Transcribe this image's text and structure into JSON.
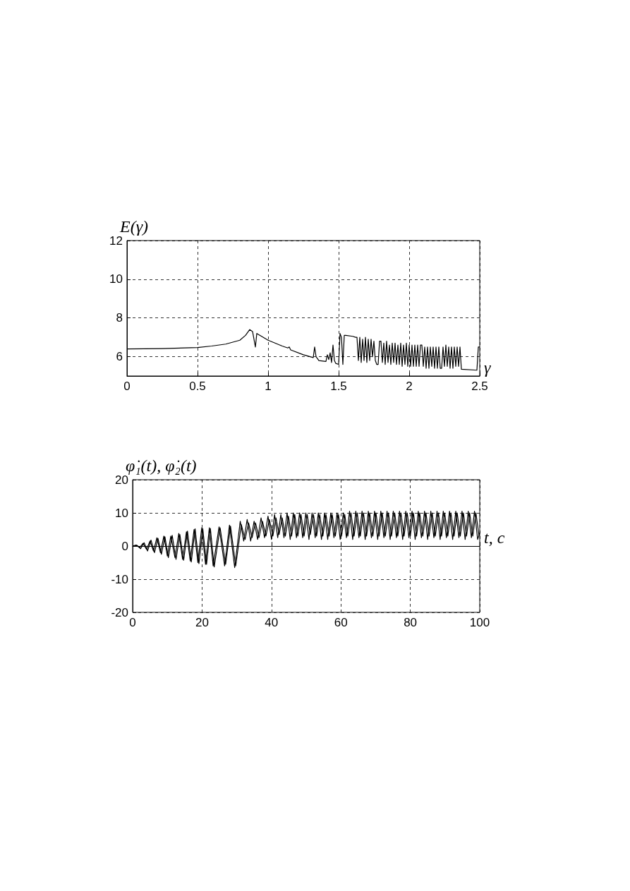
{
  "chart_data": [
    {
      "type": "line",
      "xlabel": "γ",
      "ylabel": "E(γ)",
      "xlim": [
        0,
        2.5
      ],
      "xticks": [
        0,
        0.5,
        1,
        1.5,
        2,
        2.5
      ],
      "ylim": [
        5,
        12
      ],
      "yticks": [
        6,
        8,
        10,
        12
      ],
      "grid": true,
      "marker": "none",
      "series": [
        {
          "color": "#000000",
          "x": [
            0,
            0.25,
            0.5,
            0.6,
            0.7,
            0.8,
            0.84,
            0.86,
            0.87,
            0.89,
            0.9,
            0.91,
            0.92,
            1.0,
            1.1,
            1.14,
            1.15,
            1.16,
            1.25,
            1.32,
            1.33,
            1.34,
            1.36,
            1.41,
            1.42,
            1.43,
            1.44,
            1.45,
            1.46,
            1.47,
            1.48,
            1.5,
            1.51,
            1.52,
            1.53,
            1.54,
            1.55,
            1.6,
            1.62,
            1.63,
            1.64,
            1.65,
            1.66,
            1.67,
            1.68,
            1.69,
            1.7,
            1.71,
            1.72,
            1.73,
            1.74,
            1.75,
            1.76,
            1.77,
            1.78,
            1.79,
            1.8,
            1.81,
            1.82,
            1.83,
            1.84,
            1.85,
            1.86,
            1.87,
            1.88,
            1.89,
            1.9,
            1.91,
            1.92,
            1.93,
            1.94,
            1.95,
            1.96,
            1.97,
            1.98,
            1.99,
            2.0,
            2.01,
            2.02,
            2.03,
            2.04,
            2.05,
            2.06,
            2.07,
            2.08,
            2.09,
            2.1,
            2.11,
            2.12,
            2.13,
            2.14,
            2.15,
            2.16,
            2.17,
            2.18,
            2.19,
            2.2,
            2.21,
            2.22,
            2.23,
            2.24,
            2.25,
            2.26,
            2.27,
            2.28,
            2.29,
            2.3,
            2.31,
            2.32,
            2.33,
            2.34,
            2.35,
            2.36,
            2.37,
            2.48,
            2.49,
            2.5
          ],
          "values": [
            6.4,
            6.42,
            6.47,
            6.55,
            6.65,
            6.85,
            7.1,
            7.3,
            7.4,
            7.3,
            6.9,
            6.5,
            7.2,
            6.85,
            6.55,
            6.45,
            6.5,
            6.35,
            6.1,
            5.95,
            6.5,
            6.0,
            5.8,
            5.75,
            6.1,
            5.85,
            6.2,
            5.7,
            6.6,
            5.8,
            5.65,
            5.6,
            7.2,
            7.0,
            5.6,
            7.1,
            7.1,
            7.05,
            7.0,
            7.0,
            5.8,
            7.0,
            5.7,
            6.9,
            5.8,
            7.0,
            5.7,
            6.9,
            5.8,
            6.9,
            6.0,
            6.8,
            5.8,
            5.6,
            5.6,
            6.8,
            6.8,
            5.7,
            6.7,
            5.6,
            6.8,
            5.7,
            6.6,
            5.6,
            6.7,
            5.7,
            6.7,
            5.6,
            6.6,
            5.6,
            6.7,
            5.5,
            6.6,
            5.6,
            6.7,
            5.5,
            6.6,
            5.5,
            6.6,
            5.5,
            6.6,
            5.5,
            6.6,
            5.5,
            6.6,
            6.6,
            5.5,
            6.5,
            5.4,
            6.5,
            5.4,
            6.5,
            5.5,
            6.5,
            5.4,
            6.5,
            5.4,
            6.5,
            5.4,
            5.4,
            6.5,
            5.5,
            6.6,
            5.5,
            6.5,
            5.4,
            6.5,
            5.4,
            6.5,
            5.5,
            6.5,
            5.5,
            6.5,
            5.35,
            5.3,
            6.5,
            6.5
          ]
        }
      ]
    },
    {
      "type": "line",
      "xlabel": "t, c",
      "ylabel": "φ̇₁(t), φ̇₂(t)",
      "xlim": [
        0,
        100
      ],
      "xticks": [
        0,
        20,
        40,
        60,
        80,
        100
      ],
      "ylim": [
        -20,
        20
      ],
      "yticks": [
        -20,
        -10,
        0,
        10,
        20
      ],
      "grid": true,
      "marker": "none",
      "series": [
        {
          "color": "#000000",
          "x": [
            0,
            1,
            2,
            3,
            4,
            5,
            6,
            7,
            8,
            9,
            10,
            11,
            12.2,
            13.3,
            14.4,
            15.5,
            16.6,
            17.7,
            18.8,
            19.9,
            21,
            22.1,
            23.2,
            24.9,
            26.5,
            27.9,
            29.4,
            31,
            32,
            33,
            34,
            35,
            36,
            37,
            38,
            39,
            40,
            40.9,
            41.8,
            42.7,
            43.6,
            44.5,
            45.4,
            46.3,
            47.2,
            48.1,
            49,
            49.9,
            50.8,
            51.7,
            52.6,
            53.5,
            54.4,
            55.3,
            56.2,
            57.1,
            58,
            58.9,
            59.8,
            60.7,
            61.6,
            62.5,
            63.4,
            64.3,
            65.2,
            66.1,
            67,
            67.9,
            68.8,
            69.7,
            70.6,
            71.5,
            72.4,
            73.3,
            74.2,
            75.1,
            76,
            76.9,
            77.8,
            78.7,
            79.6,
            80.5,
            81.4,
            82.3,
            83.2,
            84.1,
            85,
            85.9,
            86.8,
            87.7,
            88.6,
            89.5,
            90.4,
            91.3,
            92.2,
            93.1,
            94,
            94.9,
            95.8,
            96.7,
            97.6,
            98.5,
            99.4,
            100
          ],
          "values": [
            0,
            0.3,
            -0.5,
            0.8,
            -1,
            1.5,
            -1.5,
            2.5,
            -2,
            3,
            -3,
            3,
            -3.5,
            3.8,
            -4,
            4.3,
            -4.5,
            5,
            -5,
            5.5,
            -5.5,
            5.5,
            -6,
            5.8,
            -6,
            6.3,
            -6.5,
            7.5,
            1.5,
            8,
            1.5,
            7.5,
            2,
            8.5,
            2.5,
            9,
            2,
            9.5,
            2.5,
            9.5,
            2.5,
            10,
            2,
            10,
            2.5,
            10,
            2.5,
            10,
            2,
            10,
            2.5,
            10,
            2,
            10,
            2,
            10,
            2.5,
            10,
            2,
            10,
            2.5,
            10.5,
            2,
            10.5,
            2.5,
            10.5,
            2,
            10.5,
            2.5,
            10.5,
            2,
            10.5,
            2.5,
            10.5,
            2,
            10.5,
            2.5,
            10.5,
            2,
            10.5,
            2.5,
            10.5,
            2,
            10.5,
            2.5,
            10.5,
            2,
            10.5,
            2.5,
            10.5,
            2,
            10.5,
            2.5,
            10.5,
            2,
            10.5,
            2.5,
            10.5,
            2,
            10.5,
            2.5,
            10.5,
            2,
            4
          ]
        },
        {
          "color": "#000000",
          "x": [
            0,
            1.3,
            2.3,
            3.3,
            4.3,
            5.3,
            6.3,
            7.3,
            8.3,
            9.3,
            10.3,
            11.4,
            12.5,
            13.6,
            14.7,
            15.8,
            16.9,
            18,
            19.1,
            20.2,
            21.3,
            22.4,
            23.5,
            25.2,
            26.8,
            28.2,
            29.7,
            31.3,
            32.4,
            33.4,
            34.4,
            35.4,
            36.4,
            37.4,
            38.4,
            39.4,
            40.4,
            41.3,
            42.2,
            43.1,
            44,
            44.9,
            45.8,
            46.7,
            47.6,
            48.5,
            49.4,
            50.3,
            51.2,
            52.1,
            53,
            53.9,
            54.8,
            55.7,
            56.6,
            57.5,
            58.4,
            59.3,
            60.2,
            61.1,
            62,
            62.9,
            63.8,
            64.7,
            65.6,
            66.5,
            67.4,
            68.3,
            69.2,
            70.1,
            71,
            71.9,
            72.8,
            73.7,
            74.6,
            75.5,
            76.4,
            77.3,
            78.2,
            79.1,
            80,
            80.9,
            81.8,
            82.7,
            83.6,
            84.5,
            85.4,
            86.3,
            87.2,
            88.1,
            89,
            89.9,
            90.8,
            91.7,
            92.6,
            93.5,
            94.4,
            95.3,
            96.2,
            97.1,
            98,
            98.9,
            99.8
          ],
          "values": [
            0,
            0.2,
            -0.8,
            1,
            -1.5,
            1.8,
            -2,
            2.3,
            -2.5,
            2.8,
            -3.5,
            3.2,
            -4,
            3.5,
            -4.3,
            4.5,
            -4.8,
            5.2,
            -5.3,
            5.3,
            -5.5,
            5.3,
            -6.3,
            5.5,
            -5.5,
            6,
            -6,
            6.5,
            2,
            7,
            2.5,
            7,
            2.5,
            7.5,
            3,
            8,
            3,
            8.5,
            3.5,
            8.5,
            3,
            9,
            3,
            9.5,
            3,
            9.5,
            3,
            9.5,
            3.5,
            9.5,
            3,
            9.5,
            3,
            9.5,
            3,
            9.5,
            3,
            9.5,
            3,
            9.5,
            3,
            10,
            3,
            10,
            3,
            10,
            3,
            10,
            3,
            10,
            3,
            10,
            3,
            10,
            3,
            10,
            3,
            10,
            3,
            10,
            3,
            10,
            3,
            10,
            3,
            10,
            3,
            10,
            3,
            10,
            3,
            10,
            3,
            10,
            3,
            10,
            3,
            10,
            3,
            10,
            3,
            10,
            3
          ]
        }
      ]
    }
  ]
}
